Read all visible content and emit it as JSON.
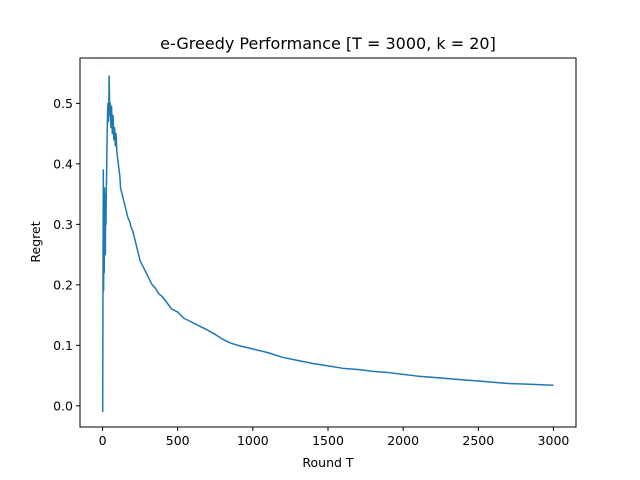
{
  "chart_data": {
    "type": "line",
    "title": "e-Greedy Performance [T = 3000, k = 20]",
    "xlabel": "Round T",
    "ylabel": "Regret",
    "xlim": [
      -150,
      3150
    ],
    "ylim": [
      -0.035,
      0.575
    ],
    "xticks": [
      0,
      500,
      1000,
      1500,
      2000,
      2500,
      3000
    ],
    "xtick_labels": [
      "0",
      "500",
      "1000",
      "1500",
      "2000",
      "2500",
      "3000"
    ],
    "yticks": [
      0.0,
      0.1,
      0.2,
      0.3,
      0.4,
      0.5
    ],
    "ytick_labels": [
      "0.0",
      "0.1",
      "0.2",
      "0.3",
      "0.4",
      "0.5"
    ],
    "grid": false,
    "color": "#1f77b4",
    "series": [
      {
        "x": [
          1,
          3,
          5,
          7,
          9,
          11,
          13,
          15,
          17,
          19,
          21,
          23,
          25,
          27,
          30,
          33,
          36,
          40,
          44,
          48,
          52,
          56,
          60,
          65,
          70,
          75,
          80,
          85,
          90,
          95,
          100,
          105,
          110,
          115,
          120,
          130,
          140,
          150,
          160,
          170,
          180,
          190,
          200,
          215,
          230,
          250,
          270,
          290,
          310,
          330,
          350,
          375,
          400,
          430,
          460,
          500,
          540,
          580,
          620,
          660,
          700,
          750,
          800,
          850,
          900,
          950,
          1000,
          1100,
          1200,
          1300,
          1400,
          1500,
          1600,
          1700,
          1800,
          1900,
          2000,
          2100,
          2200,
          2300,
          2400,
          2500,
          2600,
          2700,
          2800,
          2900,
          3000
        ],
        "y": [
          -0.01,
          0.2,
          0.39,
          0.19,
          0.33,
          0.22,
          0.36,
          0.28,
          0.34,
          0.25,
          0.35,
          0.3,
          0.36,
          0.38,
          0.44,
          0.48,
          0.5,
          0.47,
          0.545,
          0.48,
          0.5,
          0.46,
          0.495,
          0.45,
          0.48,
          0.44,
          0.46,
          0.43,
          0.45,
          0.42,
          0.41,
          0.4,
          0.39,
          0.38,
          0.36,
          0.35,
          0.34,
          0.33,
          0.32,
          0.31,
          0.305,
          0.295,
          0.29,
          0.275,
          0.26,
          0.24,
          0.23,
          0.22,
          0.21,
          0.2,
          0.195,
          0.185,
          0.18,
          0.17,
          0.16,
          0.155,
          0.145,
          0.14,
          0.135,
          0.13,
          0.125,
          0.118,
          0.11,
          0.104,
          0.1,
          0.097,
          0.094,
          0.088,
          0.08,
          0.075,
          0.07,
          0.066,
          0.062,
          0.06,
          0.057,
          0.055,
          0.052,
          0.049,
          0.047,
          0.045,
          0.043,
          0.041,
          0.039,
          0.037,
          0.036,
          0.035,
          0.034
        ]
      }
    ]
  }
}
